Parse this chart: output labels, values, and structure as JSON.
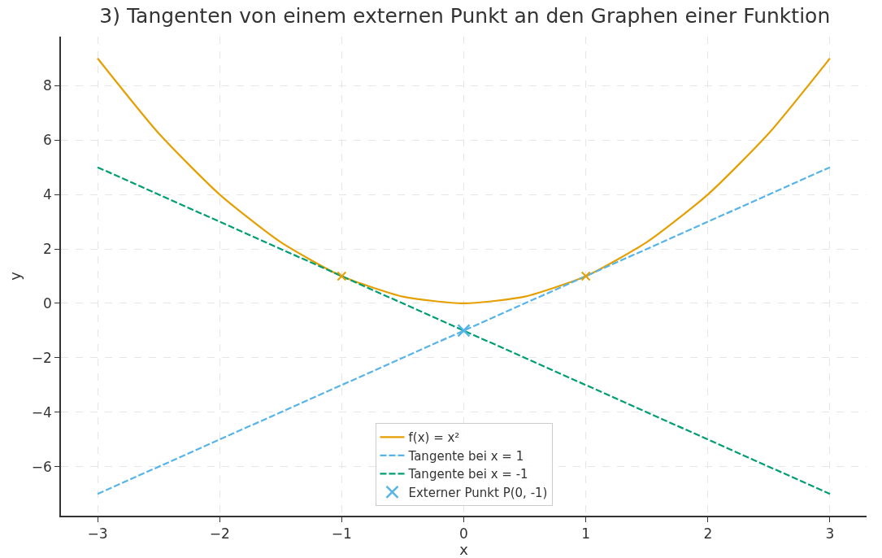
{
  "chart_data": {
    "type": "line",
    "title": "3) Tangenten von einem externen Punkt an den Graphen einer Funktion",
    "xlabel": "x",
    "ylabel": "y",
    "xlim": [
      -3.3,
      3.3
    ],
    "ylim": [
      -7.8,
      9.8
    ],
    "xticks": [
      {
        "value": -3,
        "label": "−3"
      },
      {
        "value": -2,
        "label": "−2"
      },
      {
        "value": -1,
        "label": "−1"
      },
      0,
      1,
      2,
      3
    ],
    "yticks": [
      {
        "value": -6,
        "label": "−6"
      },
      {
        "value": -4,
        "label": "−4"
      },
      {
        "value": -2,
        "label": "−2"
      },
      0,
      2,
      4,
      6,
      8
    ],
    "grid": true,
    "legend": "bottom",
    "series": [
      {
        "name": "f(x) = x²",
        "line_style": "solid",
        "color": "#e69f00",
        "x": [
          -3,
          -2.5,
          -2,
          -1.5,
          -1,
          -0.5,
          0,
          0.5,
          1,
          1.5,
          2,
          2.5,
          3
        ],
        "values": [
          9,
          6.25,
          4,
          2.25,
          1,
          0.25,
          0,
          0.25,
          1,
          2.25,
          4,
          6.25,
          9
        ]
      },
      {
        "name": "Tangente bei x = 1",
        "line_style": "dashed",
        "color": "#56b4e9",
        "x": [
          -3,
          3
        ],
        "values": [
          -7,
          5
        ]
      },
      {
        "name": "Tangente bei x = -1",
        "line_style": "dashed",
        "color": "#009e73",
        "x": [
          -3,
          3
        ],
        "values": [
          5,
          -7
        ]
      },
      {
        "type": "scatter",
        "marker": "cross",
        "color": "#e69f00",
        "x": [
          -1,
          1
        ],
        "values": [
          1,
          1
        ]
      },
      {
        "name": "Externer Punkt P(0, -1)",
        "type": "scatter",
        "marker": "cross",
        "color": "#56b4e9",
        "x": [
          0
        ],
        "values": [
          -1
        ]
      }
    ]
  }
}
